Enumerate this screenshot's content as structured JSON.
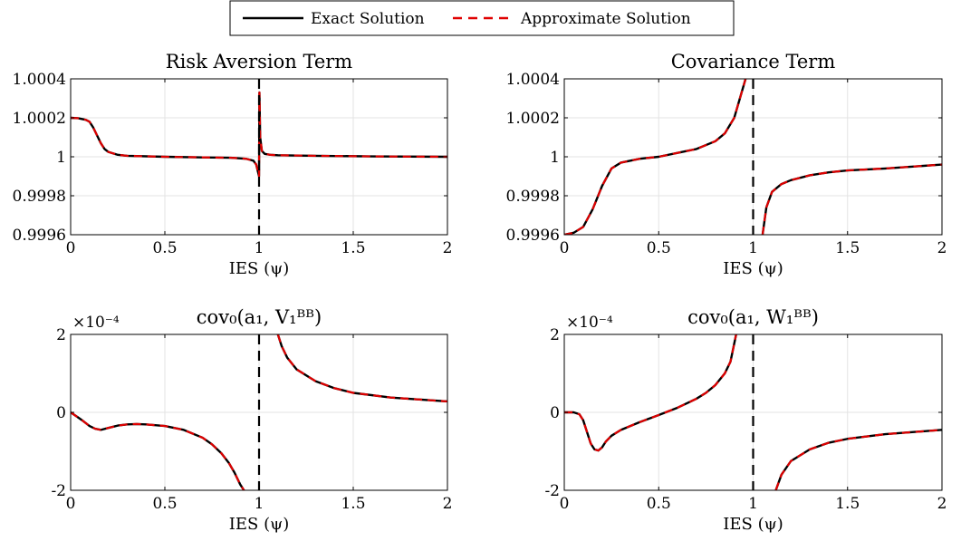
{
  "legend": {
    "placement": "top-center",
    "entries": [
      {
        "label": "Exact Solution",
        "color": "#000000",
        "dash": "solid"
      },
      {
        "label": "Approximate Solution",
        "color": "#e00000",
        "dash": "dashed"
      }
    ]
  },
  "chart_data": [
    {
      "type": "line",
      "title": "Risk Aversion Term",
      "xlabel": "IES (ψ)",
      "xlim": [
        0,
        2
      ],
      "ylim": [
        0.9996,
        1.0004
      ],
      "xticks": [
        "0",
        "0.5",
        "1",
        "1.5",
        "2"
      ],
      "yticks": [
        "0.9996",
        "0.9998",
        "1",
        "1.0002",
        "1.0004"
      ],
      "exponent": "",
      "grid": true,
      "vline": 1,
      "series": [
        {
          "name": "Exact Solution",
          "x": [
            0,
            0.04,
            0.08,
            0.1,
            0.12,
            0.14,
            0.16,
            0.18,
            0.2,
            0.25,
            0.3,
            0.5,
            0.7,
            0.85,
            0.93,
            0.97,
            0.985,
            0.995,
            1.0,
            1.002,
            1.006,
            1.015,
            1.03,
            1.06,
            1.1,
            1.3,
            1.6,
            2.0
          ],
          "y": [
            1.0002,
            1.000198,
            1.00019,
            1.00018,
            1.00015,
            1.00011,
            1.00007,
            1.00004,
            1.000025,
            1.00001,
            1.000005,
            1.0,
            0.999997,
            0.999995,
            0.99999,
            0.99998,
            0.99996,
            0.99992,
            0.9999,
            1.00033,
            1.0001,
            1.00003,
            1.000015,
            1.00001,
            1.000008,
            1.000005,
            1.000002,
            1.0
          ]
        },
        {
          "name": "Approximate Solution",
          "x": [
            0,
            0.04,
            0.08,
            0.1,
            0.12,
            0.14,
            0.16,
            0.18,
            0.2,
            0.25,
            0.3,
            0.5,
            0.7,
            0.85,
            0.93,
            0.97,
            0.985,
            0.995,
            1.0,
            1.002,
            1.006,
            1.015,
            1.03,
            1.06,
            1.1,
            1.3,
            1.6,
            2.0
          ],
          "y": [
            1.0002,
            1.000198,
            1.00019,
            1.00018,
            1.00015,
            1.00011,
            1.00007,
            1.00004,
            1.000025,
            1.00001,
            1.000005,
            1.0,
            0.999997,
            0.999995,
            0.99999,
            0.99998,
            0.99996,
            0.99992,
            0.9999,
            1.00033,
            1.0001,
            1.00003,
            1.000015,
            1.00001,
            1.000008,
            1.000005,
            1.000002,
            1.0
          ]
        }
      ]
    },
    {
      "type": "line",
      "title": "Covariance Term",
      "xlabel": "IES (ψ)",
      "xlim": [
        0,
        2
      ],
      "ylim": [
        0.9996,
        1.0004
      ],
      "xticks": [
        "0",
        "0.5",
        "1",
        "1.5",
        "2"
      ],
      "yticks": [
        "0.9996",
        "0.9998",
        "1",
        "1.0002",
        "1.0004"
      ],
      "exponent": "",
      "grid": true,
      "vline": 1,
      "series": [
        {
          "name": "Exact Solution",
          "x": [
            0,
            0.05,
            0.1,
            0.15,
            0.2,
            0.25,
            0.3,
            0.35,
            0.4,
            0.5,
            0.6,
            0.7,
            0.8,
            0.85,
            0.9,
            0.93,
            0.96,
            null,
            1.05,
            1.07,
            1.1,
            1.15,
            1.2,
            1.3,
            1.4,
            1.5,
            1.7,
            2.0
          ],
          "y": [
            0.9996,
            0.99961,
            0.99964,
            0.99973,
            0.99985,
            0.99994,
            0.99997,
            0.99998,
            0.99999,
            1.0,
            1.00002,
            1.00004,
            1.00008,
            1.00012,
            1.0002,
            1.0003,
            1.0004,
            null,
            0.9996,
            0.99974,
            0.99982,
            0.99986,
            0.99988,
            0.999905,
            0.99992,
            0.99993,
            0.99994,
            0.99996
          ]
        },
        {
          "name": "Approximate Solution",
          "x": [
            0,
            0.05,
            0.1,
            0.15,
            0.2,
            0.25,
            0.3,
            0.35,
            0.4,
            0.5,
            0.6,
            0.7,
            0.8,
            0.85,
            0.9,
            0.93,
            0.96,
            null,
            1.05,
            1.07,
            1.1,
            1.15,
            1.2,
            1.3,
            1.4,
            1.5,
            1.7,
            2.0
          ],
          "y": [
            0.9996,
            0.99961,
            0.99964,
            0.99973,
            0.99985,
            0.99994,
            0.99997,
            0.99998,
            0.99999,
            1.0,
            1.00002,
            1.00004,
            1.00008,
            1.00012,
            1.0002,
            1.0003,
            1.0004,
            null,
            0.9996,
            0.99974,
            0.99982,
            0.99986,
            0.99988,
            0.999905,
            0.99992,
            0.99993,
            0.99994,
            0.99996
          ]
        }
      ]
    },
    {
      "type": "line",
      "title": "cov₀(a₁, V₁ᴮᴮ)",
      "xlabel": "IES (ψ)",
      "xlim": [
        0,
        2
      ],
      "ylim": [
        -2,
        2
      ],
      "xticks": [
        "0",
        "0.5",
        "1",
        "1.5",
        "2"
      ],
      "yticks": [
        "-2",
        "0",
        "2"
      ],
      "exponent": "×10⁻⁴",
      "grid": true,
      "vline": 1,
      "series": [
        {
          "name": "Exact Solution",
          "x": [
            0,
            0.03,
            0.06,
            0.1,
            0.13,
            0.16,
            0.2,
            0.25,
            0.3,
            0.35,
            0.4,
            0.5,
            0.6,
            0.7,
            0.75,
            0.8,
            0.84,
            0.87,
            0.9,
            0.92,
            null,
            1.1,
            1.12,
            1.15,
            1.2,
            1.3,
            1.4,
            1.5,
            1.7,
            2.0
          ],
          "y": [
            0,
            -0.1,
            -0.2,
            -0.35,
            -0.42,
            -0.45,
            -0.4,
            -0.34,
            -0.31,
            -0.3,
            -0.31,
            -0.35,
            -0.45,
            -0.65,
            -0.82,
            -1.05,
            -1.3,
            -1.55,
            -1.85,
            -2.0,
            null,
            2.0,
            1.7,
            1.4,
            1.1,
            0.8,
            0.62,
            0.5,
            0.38,
            0.28
          ]
        },
        {
          "name": "Approximate Solution",
          "x": [
            0,
            0.03,
            0.06,
            0.1,
            0.13,
            0.16,
            0.2,
            0.25,
            0.3,
            0.35,
            0.4,
            0.5,
            0.6,
            0.7,
            0.75,
            0.8,
            0.84,
            0.87,
            0.9,
            0.92,
            null,
            1.1,
            1.12,
            1.15,
            1.2,
            1.3,
            1.4,
            1.5,
            1.7,
            2.0
          ],
          "y": [
            0,
            -0.1,
            -0.2,
            -0.35,
            -0.42,
            -0.45,
            -0.4,
            -0.34,
            -0.31,
            -0.3,
            -0.31,
            -0.35,
            -0.45,
            -0.65,
            -0.82,
            -1.05,
            -1.3,
            -1.55,
            -1.85,
            -2.0,
            null,
            2.0,
            1.7,
            1.4,
            1.1,
            0.8,
            0.62,
            0.5,
            0.38,
            0.28
          ]
        }
      ]
    },
    {
      "type": "line",
      "title": "cov₀(a₁, W₁ᴮᴮ)",
      "xlabel": "IES (ψ)",
      "xlim": [
        0,
        2
      ],
      "ylim": [
        -2,
        2
      ],
      "xticks": [
        "0",
        "0.5",
        "1",
        "1.5",
        "2"
      ],
      "yticks": [
        "-2",
        "0",
        "2"
      ],
      "exponent": "×10⁻⁴",
      "grid": true,
      "vline": 1,
      "series": [
        {
          "name": "Exact Solution",
          "x": [
            0,
            0.05,
            0.08,
            0.1,
            0.12,
            0.14,
            0.16,
            0.18,
            0.2,
            0.22,
            0.25,
            0.3,
            0.4,
            0.5,
            0.6,
            0.7,
            0.75,
            0.8,
            0.85,
            0.88,
            0.91,
            null,
            1.12,
            1.15,
            1.2,
            1.3,
            1.4,
            1.5,
            1.7,
            2.0
          ],
          "y": [
            0,
            0,
            -0.05,
            -0.2,
            -0.5,
            -0.8,
            -0.95,
            -0.98,
            -0.9,
            -0.75,
            -0.6,
            -0.45,
            -0.25,
            -0.07,
            0.12,
            0.35,
            0.5,
            0.7,
            1.0,
            1.3,
            2.0,
            null,
            -2.0,
            -1.6,
            -1.25,
            -0.95,
            -0.78,
            -0.68,
            -0.56,
            -0.45
          ]
        },
        {
          "name": "Approximate Solution",
          "x": [
            0,
            0.05,
            0.08,
            0.1,
            0.12,
            0.14,
            0.16,
            0.18,
            0.2,
            0.22,
            0.25,
            0.3,
            0.4,
            0.5,
            0.6,
            0.7,
            0.75,
            0.8,
            0.85,
            0.88,
            0.91,
            null,
            1.12,
            1.15,
            1.2,
            1.3,
            1.4,
            1.5,
            1.7,
            2.0
          ],
          "y": [
            0,
            0,
            -0.05,
            -0.2,
            -0.5,
            -0.8,
            -0.95,
            -0.98,
            -0.9,
            -0.75,
            -0.6,
            -0.45,
            -0.25,
            -0.07,
            0.12,
            0.35,
            0.5,
            0.7,
            1.0,
            1.3,
            2.0,
            null,
            -2.0,
            -1.6,
            -1.25,
            -0.95,
            -0.78,
            -0.68,
            -0.56,
            -0.45
          ]
        }
      ]
    }
  ]
}
